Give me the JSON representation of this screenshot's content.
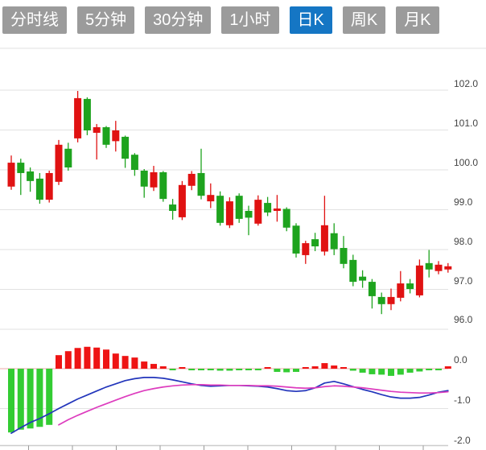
{
  "tabs": {
    "items": [
      {
        "label": "分时线",
        "active": false
      },
      {
        "label": "5分钟",
        "active": false
      },
      {
        "label": "30分钟",
        "active": false
      },
      {
        "label": "1小时",
        "active": false
      },
      {
        "label": "日K",
        "active": true
      },
      {
        "label": "周K",
        "active": false
      },
      {
        "label": "月K",
        "active": false
      }
    ]
  },
  "axis": {
    "price_labels": [
      "102.0",
      "101.0",
      "100.0",
      "99.0",
      "98.0",
      "97.0",
      "96.0"
    ],
    "macd_labels": [
      "0.0",
      "-1.0",
      "-2.0"
    ]
  },
  "colors": {
    "up": "#e01212",
    "down": "#1ea31e",
    "macd_up": "#ee1414",
    "macd_down": "#33cc33",
    "dif_line": "#2235bb",
    "dea_line": "#dd3cbe",
    "grid": "#e2e2e2",
    "zero_line": "#eeaaaa",
    "axis_line": "#cccccc",
    "tick": "#999999",
    "tab_bg": "#9b9b9b",
    "tab_active_bg": "#1576c4",
    "label_text": "#444444"
  },
  "chart_data": {
    "type": "candlestick",
    "indicator": "MACD",
    "title": "",
    "price_axis": {
      "min": 96.0,
      "max": 102.2,
      "ticks": [
        102.0,
        101.0,
        100.0,
        99.0,
        98.0,
        97.0,
        96.0
      ],
      "grid": true,
      "label_side": "right"
    },
    "macd_axis": {
      "min": -2.2,
      "max": 0.3,
      "ticks": [
        0.0,
        -1.0,
        -2.0
      ],
      "label_side": "right"
    },
    "candles": [
      [
        99.58,
        100.18,
        100.36,
        99.5
      ],
      [
        100.18,
        99.92,
        100.28,
        99.37
      ],
      [
        99.96,
        99.72,
        100.06,
        99.45
      ],
      [
        99.78,
        99.25,
        99.92,
        99.15
      ],
      [
        99.25,
        99.92,
        99.98,
        99.18
      ],
      [
        99.7,
        100.63,
        100.75,
        99.62
      ],
      [
        100.53,
        100.06,
        100.68,
        99.98
      ],
      [
        100.79,
        101.8,
        101.98,
        100.69
      ],
      [
        101.78,
        100.99,
        101.82,
        100.87
      ],
      [
        100.93,
        101.07,
        101.15,
        100.26
      ],
      [
        101.07,
        100.63,
        101.1,
        100.55
      ],
      [
        100.72,
        100.99,
        101.23,
        100.46
      ],
      [
        100.83,
        100.28,
        100.86,
        100.05
      ],
      [
        100.38,
        100.0,
        100.42,
        99.85
      ],
      [
        99.98,
        99.58,
        100.02,
        99.3
      ],
      [
        99.56,
        99.94,
        100.1,
        99.47
      ],
      [
        99.94,
        99.27,
        99.97,
        99.2
      ],
      [
        99.13,
        98.97,
        99.27,
        98.75
      ],
      [
        98.81,
        99.62,
        99.72,
        98.74
      ],
      [
        99.6,
        99.9,
        99.97,
        99.49
      ],
      [
        99.92,
        99.35,
        100.53,
        99.26
      ],
      [
        99.21,
        99.37,
        99.66,
        99.04
      ],
      [
        99.35,
        98.67,
        99.46,
        98.6
      ],
      [
        98.61,
        99.21,
        99.31,
        98.54
      ],
      [
        99.35,
        98.77,
        99.41,
        98.67
      ],
      [
        98.97,
        98.8,
        99.1,
        98.36
      ],
      [
        98.65,
        99.25,
        99.36,
        98.6
      ],
      [
        99.17,
        98.93,
        99.32,
        98.84
      ],
      [
        98.97,
        99.03,
        99.37,
        98.7
      ],
      [
        99.02,
        98.55,
        99.06,
        98.46
      ],
      [
        98.6,
        97.9,
        98.66,
        97.8
      ],
      [
        97.86,
        98.16,
        98.22,
        97.64
      ],
      [
        98.26,
        98.08,
        98.42,
        97.96
      ],
      [
        97.95,
        98.61,
        99.35,
        97.85
      ],
      [
        98.41,
        98.01,
        98.66,
        97.86
      ],
      [
        98.04,
        97.64,
        98.34,
        97.53
      ],
      [
        97.74,
        97.19,
        97.87,
        97.08
      ],
      [
        97.32,
        97.22,
        97.48,
        97.04
      ],
      [
        97.19,
        96.83,
        97.26,
        96.52
      ],
      [
        96.81,
        96.63,
        96.92,
        96.38
      ],
      [
        96.63,
        96.81,
        97.02,
        96.48
      ],
      [
        96.79,
        97.15,
        97.46,
        96.7
      ],
      [
        97.15,
        97.01,
        97.26,
        96.9
      ],
      [
        96.85,
        97.6,
        97.75,
        96.8
      ],
      [
        97.66,
        97.5,
        97.99,
        97.3
      ],
      [
        97.46,
        97.62,
        97.71,
        97.38
      ],
      [
        97.5,
        97.58,
        97.66,
        97.42
      ]
    ],
    "macd": {
      "histogram": [
        -1.6,
        -1.53,
        -1.5,
        -1.46,
        -1.41,
        0.34,
        0.44,
        0.52,
        0.55,
        0.53,
        0.48,
        0.38,
        0.32,
        0.28,
        0.18,
        0.12,
        0.06,
        -0.03,
        0.02,
        -0.04,
        -0.04,
        -0.04,
        -0.05,
        -0.05,
        -0.04,
        -0.04,
        -0.04,
        0.02,
        -0.08,
        -0.09,
        -0.08,
        0.02,
        0.06,
        0.14,
        0.08,
        0.03,
        -0.05,
        -0.1,
        -0.14,
        -0.15,
        -0.18,
        -0.15,
        -0.1,
        -0.07,
        -0.04,
        -0.03,
        0.06
      ],
      "dif": [
        -1.62,
        -1.48,
        -1.35,
        -1.25,
        -1.13,
        -1.0,
        -0.88,
        -0.76,
        -0.66,
        -0.56,
        -0.46,
        -0.38,
        -0.3,
        -0.25,
        -0.22,
        -0.22,
        -0.24,
        -0.28,
        -0.33,
        -0.38,
        -0.42,
        -0.44,
        -0.43,
        -0.42,
        -0.42,
        -0.43,
        -0.44,
        -0.46,
        -0.5,
        -0.55,
        -0.57,
        -0.55,
        -0.48,
        -0.36,
        -0.32,
        -0.38,
        -0.45,
        -0.52,
        -0.58,
        -0.65,
        -0.71,
        -0.74,
        -0.74,
        -0.72,
        -0.66,
        -0.59,
        -0.55
      ],
      "dea": [
        null,
        null,
        null,
        null,
        null,
        -1.41,
        -1.28,
        -1.17,
        -1.07,
        -0.97,
        -0.88,
        -0.79,
        -0.7,
        -0.62,
        -0.55,
        -0.5,
        -0.46,
        -0.43,
        -0.41,
        -0.4,
        -0.4,
        -0.41,
        -0.41,
        -0.42,
        -0.42,
        -0.42,
        -0.43,
        -0.43,
        -0.44,
        -0.46,
        -0.48,
        -0.49,
        -0.48,
        -0.45,
        -0.43,
        -0.44,
        -0.46,
        -0.48,
        -0.51,
        -0.54,
        -0.57,
        -0.59,
        -0.6,
        -0.61,
        -0.61,
        -0.6,
        -0.58
      ]
    }
  }
}
